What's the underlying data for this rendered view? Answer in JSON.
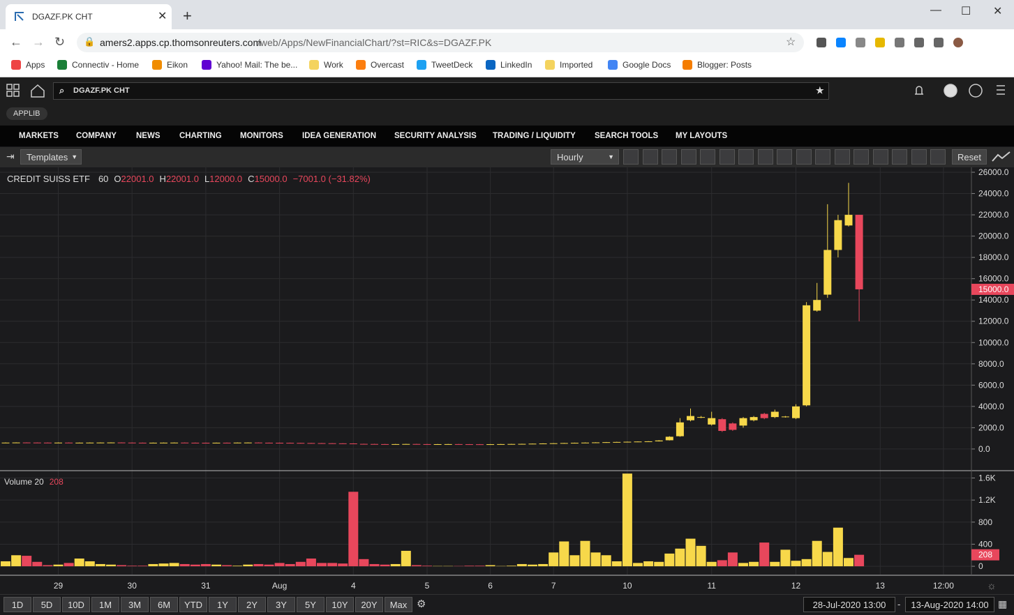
{
  "browser": {
    "tab_title": "DGAZF.PK CHT",
    "url_host": "amers2.apps.cp.thomsonreuters.com",
    "url_path": "/web/Apps/NewFinancialChart/?st=RIC&s=DGAZF.PK",
    "bookmarks": [
      "Apps",
      "Connectiv - Home",
      "Eikon",
      "Yahoo! Mail: The be...",
      "Work",
      "Overcast",
      "TweetDeck",
      "LinkedIn",
      "Imported",
      "Google Docs",
      "Blogger: Posts"
    ]
  },
  "app": {
    "search": "DGAZF.PK CHT",
    "applib": "APPLIB",
    "nav": [
      "MARKETS",
      "COMPANY",
      "NEWS",
      "CHARTING",
      "MONITORS",
      "IDEA GENERATION",
      "SECURITY ANALYSIS",
      "TRADING / LIQUIDITY",
      "SEARCH TOOLS",
      "MY LAYOUTS"
    ],
    "templates": "Templates",
    "interval": "Hourly",
    "reset": "Reset",
    "ranges": [
      "1D",
      "5D",
      "10D",
      "1M",
      "3M",
      "6M",
      "YTD",
      "1Y",
      "2Y",
      "3Y",
      "5Y",
      "10Y",
      "20Y",
      "Max"
    ],
    "date_from": "28-Jul-2020 13:00",
    "date_to": "13-Aug-2020 14:00"
  },
  "chart_data": {
    "type": "candlestick",
    "title": "CREDIT SUISS ETF",
    "period": "60",
    "header": [
      {
        "key": "O",
        "value": "22001.0"
      },
      {
        "key": "H",
        "value": "22001.0"
      },
      {
        "key": "L",
        "value": "12000.0"
      },
      {
        "key": "C",
        "value": "15000.0"
      }
    ],
    "change": "−7001.0 (−31.82%)",
    "up_color": "#f7d84a",
    "down_color": "#e8475c",
    "categories": [
      null,
      null,
      null,
      null,
      null,
      "29",
      null,
      null,
      null,
      null,
      null,
      null,
      "30",
      null,
      null,
      null,
      null,
      null,
      null,
      "31",
      null,
      null,
      null,
      null,
      null,
      null,
      "Aug",
      null,
      null,
      null,
      null,
      null,
      null,
      "4",
      null,
      null,
      null,
      null,
      null,
      null,
      "5",
      null,
      null,
      null,
      null,
      null,
      "6",
      null,
      null,
      null,
      null,
      null,
      "7",
      null,
      null,
      null,
      null,
      null,
      null,
      "10",
      null,
      null,
      null,
      null,
      null,
      null,
      null,
      "11",
      null,
      null,
      null,
      null,
      null,
      null,
      null,
      "12",
      null,
      null,
      null,
      null,
      null,
      null,
      null,
      "13",
      null,
      null,
      null,
      null,
      null,
      "12:00"
    ],
    "open": [
      590,
      600,
      610,
      605,
      600,
      595,
      600,
      590,
      595,
      600,
      605,
      610,
      600,
      590,
      585,
      590,
      595,
      600,
      590,
      585,
      580,
      590,
      585,
      600,
      605,
      590,
      585,
      580,
      570,
      560,
      550,
      540,
      530,
      520,
      480,
      470,
      460,
      450,
      460,
      470,
      460,
      450,
      455,
      460,
      450,
      445,
      440,
      450,
      460,
      470,
      480,
      500,
      520,
      540,
      560,
      580,
      600,
      620,
      640,
      660,
      680,
      700,
      720,
      820,
      1200,
      2700,
      2950,
      2300,
      2800,
      2400,
      2200,
      2700,
      3300,
      3000,
      3000,
      2900,
      4100,
      13000,
      14500,
      18700,
      21000,
      22001,
      null,
      null,
      null,
      null,
      null,
      null,
      null,
      null
    ],
    "high": [
      615,
      625,
      625,
      620,
      615,
      615,
      615,
      610,
      615,
      620,
      625,
      625,
      615,
      605,
      605,
      610,
      615,
      615,
      605,
      600,
      605,
      605,
      615,
      620,
      620,
      605,
      600,
      595,
      585,
      575,
      565,
      555,
      545,
      535,
      495,
      485,
      475,
      475,
      485,
      485,
      475,
      470,
      475,
      475,
      465,
      460,
      465,
      475,
      485,
      495,
      515,
      535,
      555,
      575,
      595,
      615,
      635,
      655,
      675,
      695,
      715,
      735,
      830,
      1200,
      2900,
      3800,
      3100,
      3500,
      2900,
      2500,
      3000,
      3100,
      3400,
      3700,
      3100,
      4200,
      13800,
      15600,
      23000,
      22000,
      25000,
      22001,
      null,
      null,
      null,
      null,
      null,
      null,
      null,
      null
    ],
    "low": [
      575,
      585,
      590,
      585,
      580,
      580,
      575,
      575,
      580,
      585,
      590,
      585,
      575,
      570,
      570,
      575,
      580,
      575,
      570,
      565,
      565,
      570,
      570,
      585,
      575,
      570,
      565,
      555,
      545,
      535,
      525,
      515,
      505,
      465,
      455,
      445,
      435,
      435,
      445,
      445,
      435,
      435,
      440,
      435,
      430,
      425,
      425,
      435,
      445,
      455,
      465,
      485,
      505,
      525,
      545,
      565,
      585,
      605,
      625,
      645,
      665,
      685,
      705,
      800,
      1150,
      2600,
      2900,
      2200,
      1600,
      1700,
      2000,
      2600,
      2800,
      2900,
      2950,
      2800,
      4000,
      12900,
      14200,
      18000,
      20900,
      12000,
      null,
      null,
      null,
      null,
      null,
      null,
      null,
      null
    ],
    "close": [
      600,
      610,
      605,
      600,
      595,
      600,
      590,
      595,
      600,
      605,
      610,
      600,
      590,
      585,
      590,
      595,
      600,
      590,
      585,
      580,
      590,
      585,
      600,
      605,
      590,
      585,
      580,
      570,
      560,
      550,
      540,
      530,
      520,
      480,
      470,
      460,
      450,
      460,
      470,
      460,
      450,
      455,
      460,
      450,
      445,
      440,
      450,
      460,
      470,
      480,
      500,
      520,
      540,
      560,
      580,
      600,
      620,
      640,
      660,
      680,
      700,
      720,
      800,
      1150,
      2500,
      3100,
      3000,
      2900,
      1700,
      1800,
      2900,
      3000,
      2900,
      3500,
      3050,
      4000,
      13500,
      14000,
      18700,
      21500,
      22000,
      15000,
      null,
      null,
      null,
      null,
      null,
      null,
      null,
      null
    ],
    "ylim": [
      -1970,
      26460
    ],
    "yticks": [
      {
        "value": 0,
        "label": "0.0"
      },
      {
        "value": 2000,
        "label": "2000.0"
      },
      {
        "value": 4000,
        "label": "4000.0"
      },
      {
        "value": 6000,
        "label": "6000.0"
      },
      {
        "value": 8000,
        "label": "8000.0"
      },
      {
        "value": 10000,
        "label": "10000.0"
      },
      {
        "value": 12000,
        "label": "12000.0"
      },
      {
        "value": 14000,
        "label": "14000.0"
      },
      {
        "value": 16000,
        "label": "16000.0"
      },
      {
        "value": 18000,
        "label": "18000.0"
      },
      {
        "value": 20000,
        "label": "20000.0"
      },
      {
        "value": 22000,
        "label": "22000.0"
      },
      {
        "value": 24000,
        "label": "24000.0"
      },
      {
        "value": 26000,
        "label": "26000.0"
      }
    ],
    "price_marker": {
      "value": 15000,
      "label": "15000.0"
    },
    "grid": true,
    "volume": {
      "name": "Volume 20",
      "values": [
        90,
        200,
        190,
        80,
        20,
        30,
        60,
        140,
        90,
        40,
        30,
        20,
        10,
        10,
        40,
        50,
        60,
        40,
        30,
        40,
        30,
        20,
        10,
        30,
        40,
        30,
        60,
        40,
        80,
        140,
        60,
        60,
        50,
        1350,
        130,
        40,
        30,
        40,
        280,
        20,
        10,
        5,
        5,
        5,
        10,
        10,
        20,
        5,
        10,
        40,
        30,
        40,
        250,
        450,
        200,
        460,
        250,
        200,
        90,
        1680,
        60,
        90,
        80,
        230,
        320,
        500,
        370,
        80,
        110,
        250,
        60,
        80,
        430,
        80,
        300,
        100,
        130,
        460,
        260,
        700,
        150,
        208,
        null,
        null,
        null,
        null,
        null,
        null,
        null,
        null
      ],
      "ylim": [
        -125,
        1720
      ],
      "yticks": [
        0,
        400,
        800,
        {
          "value": 1200,
          "label": "1.2K"
        },
        {
          "value": 1600,
          "label": "1.6K"
        }
      ],
      "marker": 208
    }
  }
}
